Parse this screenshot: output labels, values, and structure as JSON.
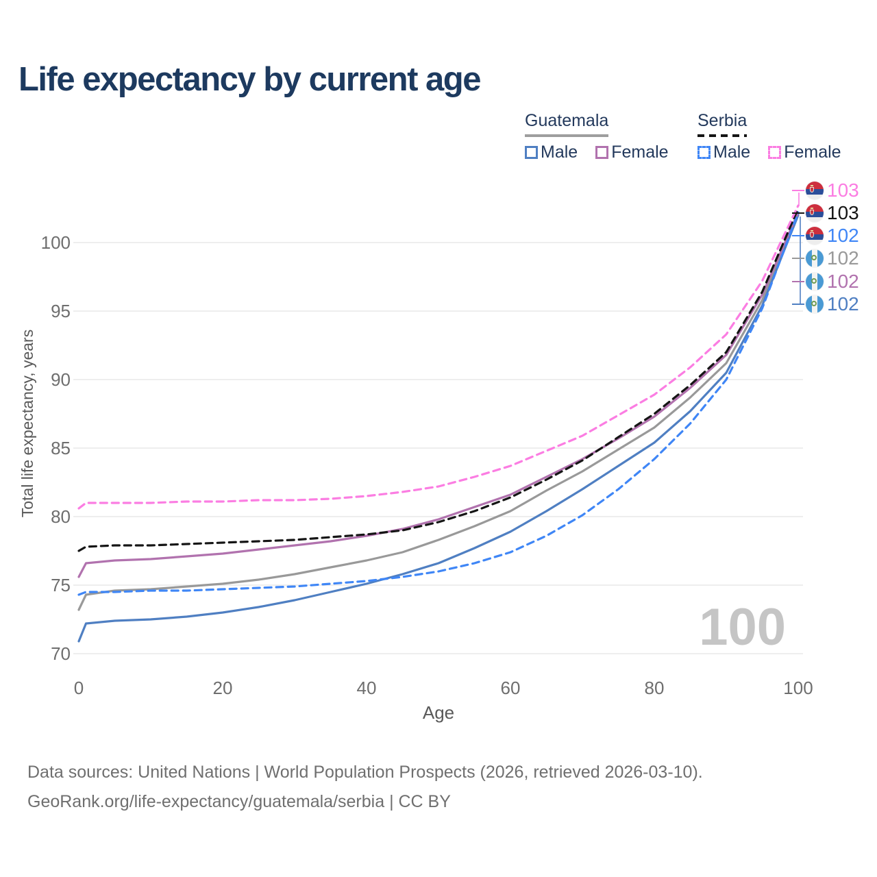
{
  "title": "Life expectancy by current age",
  "watermark": "100",
  "legend": {
    "groups": [
      {
        "country": "Guatemala",
        "line_style": "solid",
        "underline_color": "#9e9e9e",
        "items": [
          {
            "label": "Male",
            "color": "#4f7fc2",
            "dashed": false
          },
          {
            "label": "Female",
            "color": "#b172ae",
            "dashed": false
          }
        ]
      },
      {
        "country": "Serbia",
        "line_style": "dashed",
        "underline_color": "#151515",
        "items": [
          {
            "label": "Male",
            "color": "#3f86f6",
            "dashed": true
          },
          {
            "label": "Female",
            "color": "#fb7de2",
            "dashed": true
          }
        ]
      }
    ]
  },
  "chart_data": {
    "type": "line",
    "title": "Life expectancy by current age",
    "xlabel": "Age",
    "ylabel": "Total life expectancy, years",
    "x_ticks": [
      0,
      20,
      40,
      60,
      80,
      100
    ],
    "y_ticks": [
      70,
      75,
      80,
      85,
      90,
      95,
      100
    ],
    "xlim": [
      0,
      100
    ],
    "ylim": [
      69.5,
      103.5
    ],
    "grid": "horizontal",
    "ages": [
      0,
      1,
      5,
      10,
      15,
      20,
      25,
      30,
      35,
      40,
      45,
      50,
      55,
      60,
      65,
      70,
      75,
      80,
      85,
      90,
      95,
      100
    ],
    "series": [
      {
        "id": "guatemala-total",
        "country": "Guatemala",
        "sex": "Total",
        "color": "#999999",
        "dashed": false,
        "values": [
          73.2,
          74.3,
          74.6,
          74.7,
          74.9,
          75.1,
          75.4,
          75.8,
          76.3,
          76.8,
          77.4,
          78.3,
          79.3,
          80.4,
          81.9,
          83.3,
          84.9,
          86.5,
          88.7,
          91.2,
          95.8,
          102.1
        ]
      },
      {
        "id": "guatemala-male",
        "country": "Guatemala",
        "sex": "Male",
        "color": "#4f7fc2",
        "dashed": false,
        "values": [
          70.9,
          72.2,
          72.4,
          72.5,
          72.7,
          73.0,
          73.4,
          73.9,
          74.5,
          75.1,
          75.8,
          76.6,
          77.7,
          78.9,
          80.4,
          82.0,
          83.7,
          85.4,
          87.7,
          90.5,
          95.4,
          102.0
        ]
      },
      {
        "id": "guatemala-female",
        "country": "Guatemala",
        "sex": "Female",
        "color": "#b172ae",
        "dashed": false,
        "values": [
          75.6,
          76.6,
          76.8,
          76.9,
          77.1,
          77.3,
          77.6,
          77.9,
          78.2,
          78.6,
          79.1,
          79.8,
          80.7,
          81.6,
          82.9,
          84.2,
          85.7,
          87.3,
          89.4,
          91.8,
          96.2,
          102.2
        ]
      },
      {
        "id": "serbia-male",
        "country": "Serbia",
        "sex": "Male",
        "color": "#3f86f6",
        "dashed": true,
        "values": [
          74.3,
          74.5,
          74.5,
          74.6,
          74.6,
          74.7,
          74.8,
          74.9,
          75.1,
          75.3,
          75.6,
          76.0,
          76.6,
          77.4,
          78.6,
          80.1,
          82.0,
          84.2,
          86.8,
          90.0,
          95.2,
          102.2
        ]
      },
      {
        "id": "serbia-total",
        "country": "Serbia",
        "sex": "Total",
        "color": "#151515",
        "dashed": true,
        "values": [
          77.5,
          77.8,
          77.9,
          77.9,
          78.0,
          78.1,
          78.2,
          78.3,
          78.5,
          78.7,
          79.0,
          79.6,
          80.4,
          81.4,
          82.7,
          84.1,
          85.8,
          87.5,
          89.6,
          92.0,
          96.4,
          102.5
        ]
      },
      {
        "id": "serbia-female",
        "country": "Serbia",
        "sex": "Female",
        "color": "#fb7de2",
        "dashed": true,
        "values": [
          80.6,
          81.0,
          81.0,
          81.0,
          81.1,
          81.1,
          81.2,
          81.2,
          81.3,
          81.5,
          81.8,
          82.2,
          82.9,
          83.7,
          84.8,
          85.9,
          87.4,
          88.9,
          90.9,
          93.3,
          97.2,
          102.7
        ]
      }
    ]
  },
  "end_labels": {
    "rows": [
      {
        "flag": "serbia",
        "value": "103",
        "color": "#fb7de2",
        "series": "serbia-female"
      },
      {
        "flag": "serbia",
        "value": "103",
        "color": "#151515",
        "series": "serbia-total"
      },
      {
        "flag": "serbia",
        "value": "102",
        "color": "#3f86f6",
        "series": "serbia-male"
      },
      {
        "flag": "guatemala",
        "value": "102",
        "color": "#999999",
        "series": "guatemala-total"
      },
      {
        "flag": "guatemala",
        "value": "102",
        "color": "#b172ae",
        "series": "guatemala-female"
      },
      {
        "flag": "guatemala",
        "value": "102",
        "color": "#4f7fc2",
        "series": "guatemala-male"
      }
    ]
  },
  "footer": {
    "line1": "Data sources: United Nations | World Population Prospects (2026, retrieved 2026-03-10).",
    "line2": "GeoRank.org/life-expectancy/guatemala/serbia | CC BY"
  }
}
